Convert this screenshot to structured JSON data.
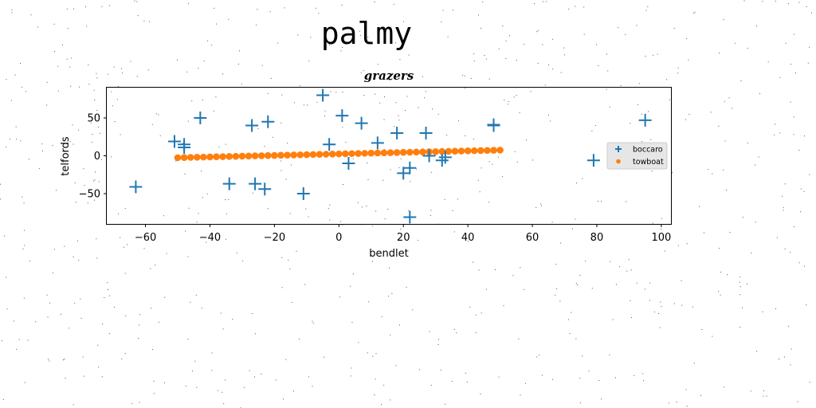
{
  "figure": {
    "suptitle": "palmy"
  },
  "chart_data": {
    "type": "scatter",
    "title": "grazers",
    "xlabel": "bendlet",
    "ylabel": "telfords",
    "xlim": [
      -72,
      103
    ],
    "ylim": [
      -90,
      90
    ],
    "xticks": [
      -60,
      -40,
      -20,
      0,
      20,
      40,
      60,
      80,
      100
    ],
    "yticks": [
      -50,
      0,
      50
    ],
    "grid": false,
    "legend_position": "right",
    "series": [
      {
        "name": "boccaro",
        "marker": "plus",
        "color": "#1f77b4",
        "points": [
          [
            -63,
            -41
          ],
          [
            -51,
            19
          ],
          [
            -48,
            15
          ],
          [
            -48,
            11
          ],
          [
            -43,
            50
          ],
          [
            -34,
            -37
          ],
          [
            -27,
            40
          ],
          [
            -26,
            -37
          ],
          [
            -23,
            -44
          ],
          [
            -22,
            45
          ],
          [
            -11,
            -50
          ],
          [
            -5,
            80
          ],
          [
            -3,
            15
          ],
          [
            1,
            53
          ],
          [
            3,
            -10
          ],
          [
            7,
            43
          ],
          [
            12,
            17
          ],
          [
            18,
            30
          ],
          [
            20,
            -23
          ],
          [
            22,
            -16
          ],
          [
            22,
            -81
          ],
          [
            27,
            30
          ],
          [
            28,
            0
          ],
          [
            32,
            -6
          ],
          [
            33,
            -2
          ],
          [
            48,
            41
          ],
          [
            48,
            40
          ],
          [
            79,
            -6
          ],
          [
            95,
            47
          ]
        ]
      },
      {
        "name": "towboat",
        "marker": "circle",
        "color": "#ff7f0e",
        "x_start": -50,
        "x_end": 50,
        "count": 51,
        "y_start": -2.5,
        "y_end": 7.5
      }
    ]
  }
}
